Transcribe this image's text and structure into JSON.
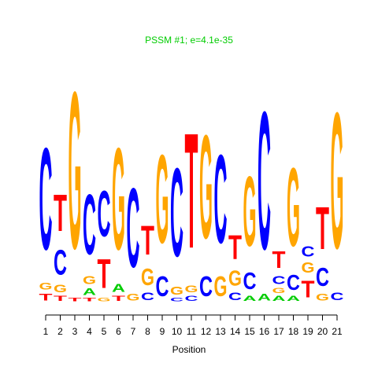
{
  "chart_data": {
    "type": "logo",
    "title": "PSSM #1; e=4.1e-35",
    "title_color": "#00cc00",
    "xlabel": "Position",
    "categories": [
      "1",
      "2",
      "3",
      "4",
      "5",
      "6",
      "7",
      "8",
      "9",
      "10",
      "11",
      "12",
      "13",
      "14",
      "15",
      "16",
      "17",
      "18",
      "19",
      "20",
      "21"
    ],
    "ylim": [
      0,
      2
    ],
    "colors": {
      "A": "#00cc00",
      "C": "#0000ff",
      "G": "#ffa500",
      "T": "#ff0000"
    },
    "stacks": [
      [
        {
          "letter": "T",
          "height": 0.08
        },
        {
          "letter": "G",
          "height": 0.08
        },
        {
          "letter": "C",
          "height": 1.22
        }
      ],
      [
        {
          "letter": "T",
          "height": 0.06
        },
        {
          "letter": "G",
          "height": 0.09
        },
        {
          "letter": "C",
          "height": 0.3
        },
        {
          "letter": "T",
          "height": 0.44
        }
      ],
      [
        {
          "letter": "T",
          "height": 0.04
        },
        {
          "letter": "G",
          "height": 1.88
        }
      ],
      [
        {
          "letter": "T",
          "height": 0.04
        },
        {
          "letter": "A",
          "height": 0.08
        },
        {
          "letter": "G",
          "height": 0.1
        },
        {
          "letter": "C",
          "height": 0.72
        }
      ],
      [
        {
          "letter": "G",
          "height": 0.04
        },
        {
          "letter": "T",
          "height": 0.35
        },
        {
          "letter": "C",
          "height": 0.55
        }
      ],
      [
        {
          "letter": "T",
          "height": 0.06
        },
        {
          "letter": "A",
          "height": 0.1
        },
        {
          "letter": "G",
          "height": 1.22
        }
      ],
      [
        {
          "letter": "G",
          "height": 0.08
        },
        {
          "letter": "C",
          "height": 0.95
        }
      ],
      [
        {
          "letter": "C",
          "height": 0.09
        },
        {
          "letter": "G",
          "height": 0.2
        },
        {
          "letter": "T",
          "height": 0.35
        }
      ],
      [
        {
          "letter": "C",
          "height": 0.24
        },
        {
          "letter": "G",
          "height": 1.06
        }
      ],
      [
        {
          "letter": "C",
          "height": 0.04
        },
        {
          "letter": "G",
          "height": 0.1
        },
        {
          "letter": "C",
          "height": 1.06
        }
      ],
      [
        {
          "letter": "C",
          "height": 0.06
        },
        {
          "letter": "G",
          "height": 0.08
        },
        {
          "letter": "T",
          "height": 1.38
        }
      ],
      [
        {
          "letter": "C",
          "height": 0.24
        },
        {
          "letter": "G",
          "height": 1.24
        }
      ],
      [
        {
          "letter": "G",
          "height": 0.24
        },
        {
          "letter": "C",
          "height": 1.06
        }
      ],
      [
        {
          "letter": "C",
          "height": 0.09
        },
        {
          "letter": "G",
          "height": 0.18
        },
        {
          "letter": "T",
          "height": 0.29
        }
      ],
      [
        {
          "letter": "A",
          "height": 0.06
        },
        {
          "letter": "C",
          "height": 0.2
        },
        {
          "letter": "G",
          "height": 0.84
        }
      ],
      [
        {
          "letter": "A",
          "height": 0.08
        },
        {
          "letter": "C",
          "height": 1.65
        }
      ],
      [
        {
          "letter": "A",
          "height": 0.06
        },
        {
          "letter": "G",
          "height": 0.06
        },
        {
          "letter": "C",
          "height": 0.1
        },
        {
          "letter": "T",
          "height": 0.2
        }
      ],
      [
        {
          "letter": "A",
          "height": 0.06
        },
        {
          "letter": "C",
          "height": 0.18
        },
        {
          "letter": "G",
          "height": 0.94
        }
      ],
      [
        {
          "letter": "T",
          "height": 0.2
        },
        {
          "letter": "G",
          "height": 0.12
        },
        {
          "letter": "C",
          "height": 0.12
        }
      ],
      [
        {
          "letter": "G",
          "height": 0.08
        },
        {
          "letter": "C",
          "height": 0.22
        },
        {
          "letter": "T",
          "height": 0.51
        }
      ],
      [
        {
          "letter": "C",
          "height": 0.09
        },
        {
          "letter": "G",
          "height": 1.63
        }
      ]
    ]
  }
}
